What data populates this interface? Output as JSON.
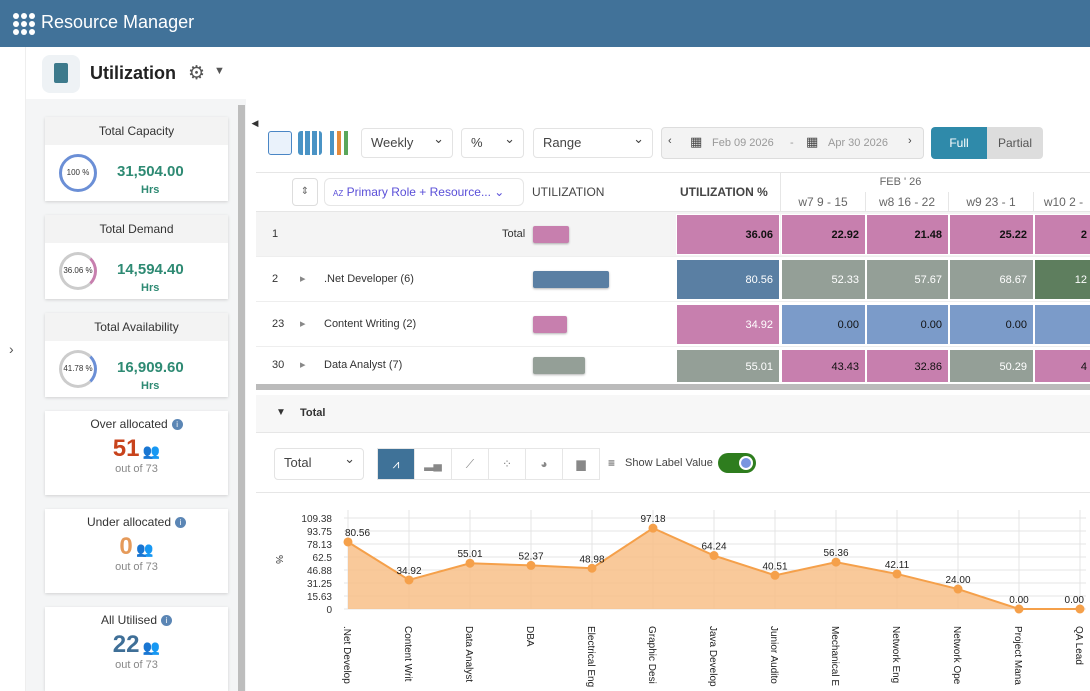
{
  "app": {
    "title": "Resource Manager"
  },
  "page": {
    "title": "Utilization"
  },
  "summary": {
    "capacity": {
      "label": "Total Capacity",
      "pct": "100 %",
      "value": "31,504.00",
      "unit": "Hrs"
    },
    "demand": {
      "label": "Total Demand",
      "pct": "36.06 %",
      "value": "14,594.40",
      "unit": "Hrs"
    },
    "availability": {
      "label": "Total Availability",
      "pct": "41.78 %",
      "value": "16,909.60",
      "unit": "Hrs"
    },
    "over": {
      "label": "Over allocated",
      "count": "51",
      "of": "out of 73"
    },
    "under": {
      "label": "Under allocated",
      "count": "0",
      "of": "out of 73"
    },
    "all": {
      "label": "All Utilised",
      "count": "22",
      "of": "out of 73"
    }
  },
  "toolbar": {
    "period": "Weekly",
    "unit": "%",
    "range": "Range",
    "date_from": "Feb 09 2026",
    "date_sep": "-",
    "date_to": "Apr 30 2026",
    "full": "Full",
    "partial": "Partial"
  },
  "grid": {
    "group_by": "Primary Role + Resource...",
    "col_util": "UTILIZATION",
    "col_util_pct": "UTILIZATION %",
    "month": "FEB ' 26",
    "weeks": [
      "w7 9 - 15",
      "w8 16 - 22",
      "w9 23 - 1",
      "w10 2 -"
    ],
    "rows": [
      {
        "idx": "1",
        "name": "Total",
        "pct": "36.06",
        "weeks": [
          "22.92",
          "21.48",
          "25.22",
          "2"
        ],
        "color": "#c77fae",
        "wc": [
          "#c77fae",
          "#c77fae",
          "#c77fae",
          "#c77fae"
        ]
      },
      {
        "idx": "2",
        "name": ".Net Developer (6)",
        "pct": "80.56",
        "weeks": [
          "52.33",
          "57.67",
          "68.67",
          "12"
        ],
        "color": "#5a7fa3",
        "wc": [
          "#949f97",
          "#949f97",
          "#949f97",
          "#5e7e5e"
        ]
      },
      {
        "idx": "23",
        "name": "Content Writing (2)",
        "pct": "34.92",
        "weeks": [
          "0.00",
          "0.00",
          "0.00",
          ""
        ],
        "color": "#c77fae",
        "wc": [
          "#7b9bc9",
          "#7b9bc9",
          "#7b9bc9",
          "#7b9bc9"
        ]
      },
      {
        "idx": "30",
        "name": "Data Analyst (7)",
        "pct": "55.01",
        "weeks": [
          "43.43",
          "32.86",
          "50.29",
          "4"
        ],
        "color": "#949f97",
        "wc": [
          "#c77fae",
          "#c77fae",
          "#949f97",
          "#c77fae"
        ]
      }
    ]
  },
  "chart_panel": {
    "section": "Total",
    "series_select": "Total",
    "show_label": "Show Label Value",
    "show_label_on": true
  },
  "chart_data": {
    "type": "area",
    "ylabel": "%",
    "xlabel": "",
    "yticks": [
      "109.38",
      "93.75",
      "78.13",
      "62.5",
      "46.88",
      "31.25",
      "15.63",
      "0"
    ],
    "ylim": [
      0,
      109.38
    ],
    "categories": [
      ".Net Develop",
      "Content Writ",
      "Data Analyst",
      "DBA",
      "Electrical Eng",
      "Graphic Desi",
      "Java Develop",
      "Junior Audito",
      "Mechanical E",
      "Network Eng",
      "Network Ope",
      "Project Mana",
      "QA Lead"
    ],
    "values": [
      80.56,
      34.92,
      55.01,
      52.37,
      48.98,
      97.18,
      64.24,
      40.51,
      56.36,
      42.11,
      24.0,
      0.0,
      0.0
    ],
    "labels": [
      "80.56",
      "34.92",
      "55.01",
      "52.37",
      "48.98",
      "97.18",
      "64.24",
      "40.51",
      "56.36",
      "42.11",
      "24.00",
      "0.00",
      "0.00"
    ],
    "color": "#f5a04a"
  }
}
